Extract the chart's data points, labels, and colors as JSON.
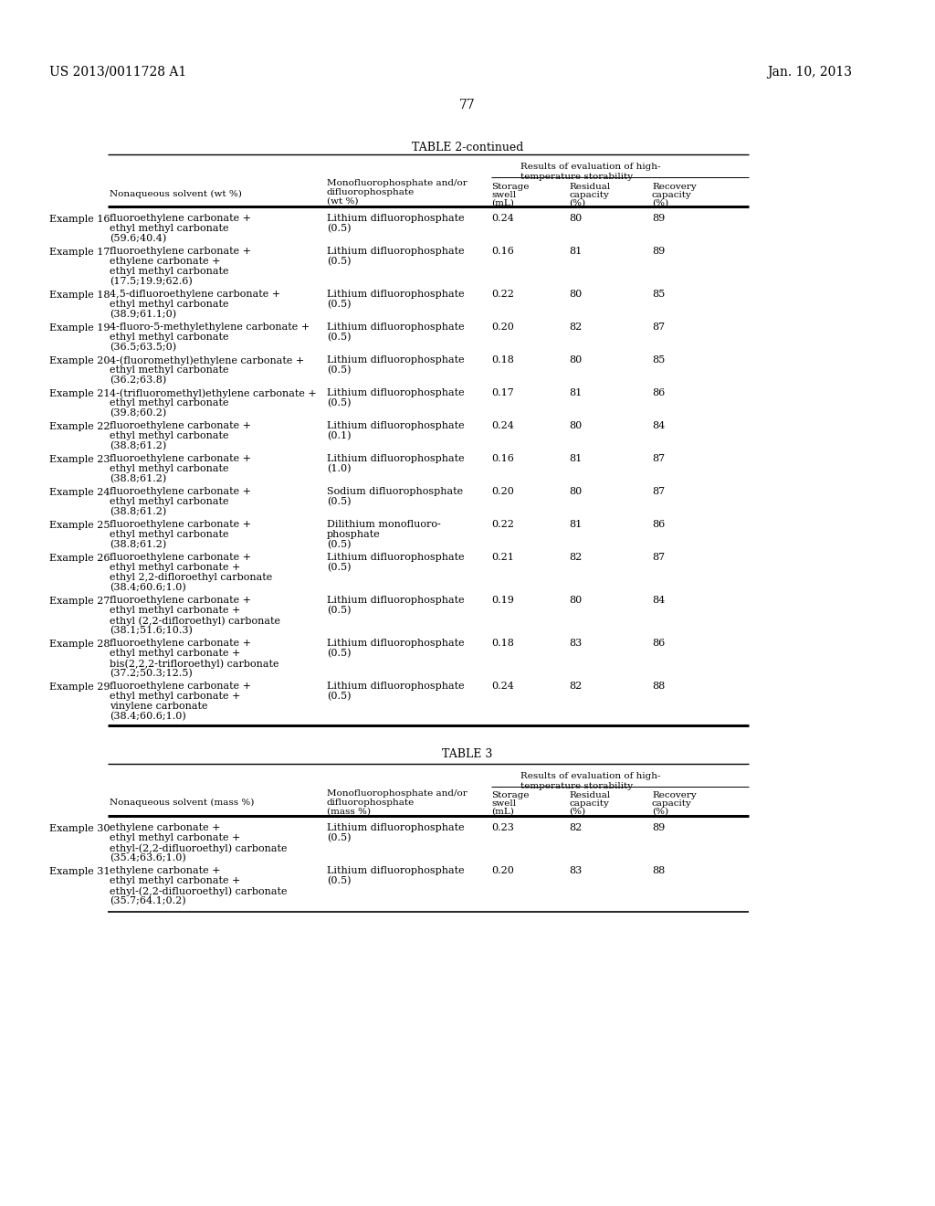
{
  "page_number": "77",
  "patent_left": "US 2013/0011728 A1",
  "patent_right": "Jan. 10, 2013",
  "table2_title": "TABLE 2-continued",
  "table2_rows": [
    {
      "example": "Example 16",
      "solvent": [
        "fluoroethylene carbonate +",
        "ethyl methyl carbonate",
        "(59.6;40.4)"
      ],
      "phosphate": [
        "Lithium difluorophosphate",
        "(0.5)"
      ],
      "swell": "0.24",
      "residual": "80",
      "recovery": "89"
    },
    {
      "example": "Example 17",
      "solvent": [
        "fluoroethylene carbonate +",
        "ethylene carbonate +",
        "ethyl methyl carbonate",
        "(17.5;19.9;62.6)"
      ],
      "phosphate": [
        "Lithium difluorophosphate",
        "(0.5)"
      ],
      "swell": "0.16",
      "residual": "81",
      "recovery": "89"
    },
    {
      "example": "Example 18",
      "solvent": [
        "4,5-difluoroethylene carbonate +",
        "ethyl methyl carbonate",
        "(38.9;61.1;0)"
      ],
      "phosphate": [
        "Lithium difluorophosphate",
        "(0.5)"
      ],
      "swell": "0.22",
      "residual": "80",
      "recovery": "85"
    },
    {
      "example": "Example 19",
      "solvent": [
        "4-fluoro-5-methylethylene carbonate +",
        "ethyl methyl carbonate",
        "(36.5;63.5;0)"
      ],
      "phosphate": [
        "Lithium difluorophosphate",
        "(0.5)"
      ],
      "swell": "0.20",
      "residual": "82",
      "recovery": "87"
    },
    {
      "example": "Example 20",
      "solvent": [
        "4-(fluoromethyl)ethylene carbonate +",
        "ethyl methyl carbonate",
        "(36.2;63.8)"
      ],
      "phosphate": [
        "Lithium difluorophosphate",
        "(0.5)"
      ],
      "swell": "0.18",
      "residual": "80",
      "recovery": "85"
    },
    {
      "example": "Example 21",
      "solvent": [
        "4-(trifluoromethyl)ethylene carbonate +",
        "ethyl methyl carbonate",
        "(39.8;60.2)"
      ],
      "phosphate": [
        "Lithium difluorophosphate",
        "(0.5)"
      ],
      "swell": "0.17",
      "residual": "81",
      "recovery": "86"
    },
    {
      "example": "Example 22",
      "solvent": [
        "fluoroethylene carbonate +",
        "ethyl methyl carbonate",
        "(38.8;61.2)"
      ],
      "phosphate": [
        "Lithium difluorophosphate",
        "(0.1)"
      ],
      "swell": "0.24",
      "residual": "80",
      "recovery": "84"
    },
    {
      "example": "Example 23",
      "solvent": [
        "fluoroethylene carbonate +",
        "ethyl methyl carbonate",
        "(38.8;61.2)"
      ],
      "phosphate": [
        "Lithium difluorophosphate",
        "(1.0)"
      ],
      "swell": "0.16",
      "residual": "81",
      "recovery": "87"
    },
    {
      "example": "Example 24",
      "solvent": [
        "fluoroethylene carbonate +",
        "ethyl methyl carbonate",
        "(38.8;61.2)"
      ],
      "phosphate": [
        "Sodium difluorophosphate",
        "(0.5)"
      ],
      "swell": "0.20",
      "residual": "80",
      "recovery": "87"
    },
    {
      "example": "Example 25",
      "solvent": [
        "fluoroethylene carbonate +",
        "ethyl methyl carbonate",
        "(38.8;61.2)"
      ],
      "phosphate": [
        "Dilithium monofluoro-",
        "phosphate",
        "(0.5)"
      ],
      "swell": "0.22",
      "residual": "81",
      "recovery": "86"
    },
    {
      "example": "Example 26",
      "solvent": [
        "fluoroethylene carbonate +",
        "ethyl methyl carbonate +",
        "ethyl 2,2-difloroethyl carbonate",
        "(38.4;60.6;1.0)"
      ],
      "phosphate": [
        "Lithium difluorophosphate",
        "(0.5)"
      ],
      "swell": "0.21",
      "residual": "82",
      "recovery": "87"
    },
    {
      "example": "Example 27",
      "solvent": [
        "fluoroethylene carbonate +",
        "ethyl methyl carbonate +",
        "ethyl (2,2-difloroethyl) carbonate",
        "(38.1;51.6;10.3)"
      ],
      "phosphate": [
        "Lithium difluorophosphate",
        "(0.5)"
      ],
      "swell": "0.19",
      "residual": "80",
      "recovery": "84"
    },
    {
      "example": "Example 28",
      "solvent": [
        "fluoroethylene carbonate +",
        "ethyl methyl carbonate +",
        "bis(2,2,2-trifloroethyl) carbonate",
        "(37.2;50.3;12.5)"
      ],
      "phosphate": [
        "Lithium difluorophosphate",
        "(0.5)"
      ],
      "swell": "0.18",
      "residual": "83",
      "recovery": "86"
    },
    {
      "example": "Example 29",
      "solvent": [
        "fluoroethylene carbonate +",
        "ethyl methyl carbonate +",
        "vinylene carbonate",
        "(38.4;60.6;1.0)"
      ],
      "phosphate": [
        "Lithium difluorophosphate",
        "(0.5)"
      ],
      "swell": "0.24",
      "residual": "82",
      "recovery": "88"
    }
  ],
  "table3_title": "TABLE 3",
  "table3_rows": [
    {
      "example": "Example 30",
      "solvent": [
        "ethylene carbonate +",
        "ethyl methyl carbonate +",
        "ethyl-(2,2-difluoroethyl) carbonate",
        "(35.4;63.6;1.0)"
      ],
      "phosphate": [
        "Lithium difluorophosphate",
        "(0.5)"
      ],
      "swell": "0.23",
      "residual": "82",
      "recovery": "89"
    },
    {
      "example": "Example 31",
      "solvent": [
        "ethylene carbonate +",
        "ethyl methyl carbonate +",
        "ethyl-(2,2-difluoroethyl) carbonate",
        "(35.7;64.1;0.2)"
      ],
      "phosphate": [
        "Lithium difluorophosphate",
        "(0.5)"
      ],
      "swell": "0.20",
      "residual": "83",
      "recovery": "88"
    }
  ]
}
